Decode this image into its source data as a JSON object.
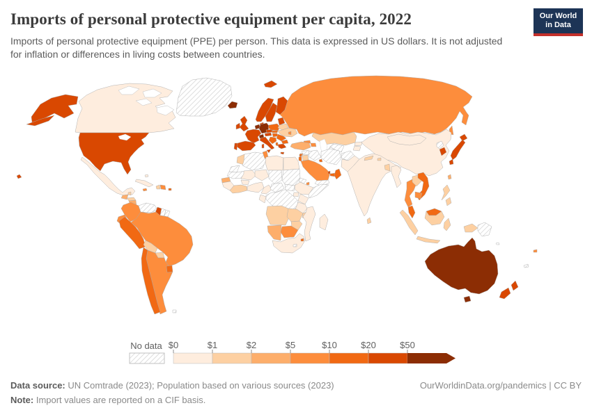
{
  "header": {
    "title": "Imports of personal protective equipment per capita, 2022",
    "subtitle": "Imports of personal protective equipment (PPE) per person. This data is expressed in US dollars. It is not adjusted for inflation or differences in living costs between countries.",
    "logo": {
      "line1": "Our World",
      "line2": "in Data",
      "bg": "#1d3456",
      "accent": "#c4302b"
    }
  },
  "legend": {
    "no_data_label": "No data",
    "tick_labels": [
      "$0",
      "$1",
      "$2",
      "$5",
      "$10",
      "$20",
      "$50"
    ],
    "bucket_colors": [
      "#feedde",
      "#fdd0a2",
      "#fdae6b",
      "#fd8d3c",
      "#f16913",
      "#d94801",
      "#8c2d04"
    ],
    "nodata_stripe": "#d8d8d8",
    "nodata_border": "#c2c2c2"
  },
  "chart_data": {
    "type": "choropleth",
    "title": "Imports of personal protective equipment per capita, 2022",
    "unit": "US dollars per person",
    "bucket_ranges": [
      "$0-$1",
      "$1-$2",
      "$2-$5",
      "$5-$10",
      "$10-$20",
      "$20-$50",
      "$50+"
    ],
    "countries": {
      "canada": 0,
      "greenland": "nd",
      "united-states": 5,
      "mexico": 0,
      "guatemala": 2,
      "belize": 1,
      "honduras": 1,
      "nicaragua": 2,
      "costa-rica": 5,
      "panama": 4,
      "cuba": 0,
      "haiti": 1,
      "dominican-republic": 3,
      "jamaica": 3,
      "puerto-rico": 4,
      "bahamas": 0,
      "colombia": 3,
      "venezuela": "nd",
      "guyana": 5,
      "suriname": "nd",
      "french-guiana": "nd",
      "ecuador": 3,
      "peru": 4,
      "brazil": 3,
      "bolivia": 1,
      "paraguay": 1,
      "uruguay": 4,
      "chile": 4,
      "argentina": 3,
      "falkland-islands": "nd",
      "iceland": 6,
      "norway": 5,
      "sweden": 5,
      "finland": 5,
      "denmark": 5,
      "united-kingdom": 5,
      "ireland": 5,
      "benelux": 6,
      "germany": 6,
      "france": 5,
      "switzerland": 6,
      "austria": 5,
      "czechia": 5,
      "poland": 4,
      "baltics": 5,
      "belarus": 1,
      "ukraine": 1,
      "moldova": 3,
      "slovakia": 4,
      "hungary": 4,
      "romania": 4,
      "balkans": 4,
      "bulgaria": 4,
      "albania": 4,
      "greece": 5,
      "italy": 5,
      "spain": 5,
      "portugal": 5,
      "turkey": 2,
      "cyprus": 3,
      "russia": 3,
      "kazakhstan": 1,
      "uzbekistan": "nd",
      "turkmenistan": "nd",
      "kyrgyzstan": 0,
      "tajikistan": 0,
      "georgia": 3,
      "azerbaijan": 3,
      "syria": "nd",
      "lebanon": 4,
      "israel": 4,
      "jordan": 1,
      "iraq": "nd",
      "iran": "nd",
      "afghanistan": "nd",
      "pakistan": 0,
      "kuwait": 4,
      "saudi-arabia": 3,
      "qatar": 5,
      "united-arab-emirates": 4,
      "oman": 4,
      "yemen": "nd",
      "morocco": 1,
      "western-sahara": "nd",
      "algeria": "nd",
      "tunisia": 3,
      "libya": 0,
      "egypt": 0,
      "mauritania": "nd",
      "senegal": 2,
      "guinea": 0,
      "mali": 0,
      "burkina-faso": 0,
      "niger": 0,
      "chad": "nd",
      "sudan": "nd",
      "eritrea": "nd",
      "ethiopia": 0,
      "djibouti": 3,
      "somalia": "nd",
      "ghana": 1,
      "nigeria": 0,
      "cameroon": 0,
      "central-african-republic": "nd",
      "south-sudan": "nd",
      "uganda": 0,
      "kenya": 0,
      "democratic-republic-of-congo": "nd",
      "congo": 0,
      "tanzania": 0,
      "angola": 1,
      "zambia": 1,
      "malawi": 1,
      "mozambique": 0,
      "zimbabwe": 1,
      "namibia": 2,
      "botswana": 3,
      "south-africa": 0,
      "lesotho": "nd",
      "eswatini": 4,
      "madagascar": 0,
      "china": 0,
      "mongolia": 0,
      "north-korea": "nd",
      "south-korea": 5,
      "japan": 5,
      "taiwan": 2,
      "india": 0,
      "nepal": 1,
      "bhutan": 1,
      "bangladesh": 1,
      "sri-lanka": 1,
      "myanmar": 0,
      "thailand": 3,
      "laos": 1,
      "vietnam": 4,
      "cambodia": 3,
      "malaysia": 4,
      "indonesia": 1,
      "papua-new-guinea": "nd",
      "philippines": 1,
      "australia": 6,
      "new-zealand": 5,
      "fiji": 3,
      "new-caledonia": "nd",
      "solomon-islands": "nd"
    }
  },
  "footer": {
    "source_label": "Data source:",
    "source_text": " UN Comtrade (2023); Population based on various sources (2023)",
    "note_label": "Note:",
    "note_text": " Import values are reported on a CIF basis.",
    "credit": "OurWorldinData.org/pandemics | CC BY"
  }
}
